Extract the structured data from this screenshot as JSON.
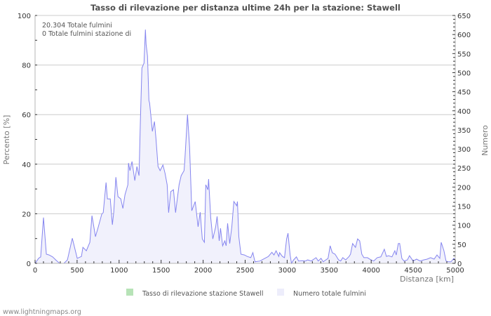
{
  "title": "Tasso di rilevazione per distanza ultime 24h per la stazione: Stawell",
  "annotations": {
    "total_strikes": "20.304 Totale fulmini",
    "station_strikes": "0 Totale fulmini stazione di"
  },
  "axes": {
    "y_left_label": "Percento   [%]",
    "y_right_label": "Numero",
    "x_label": "Distanza   [km]"
  },
  "legend": {
    "items": [
      {
        "label": "Tasso di rilevazione stazione Stawell",
        "color": "#b7e3b7"
      },
      {
        "label": "Numero totale fulmini",
        "color": "#ededfb"
      }
    ]
  },
  "footer": "www.lightningmaps.org",
  "colors": {
    "line": "#8585ef",
    "fill": "#f1f1fc",
    "grid": "#cccccc",
    "axis": "#b5b5b5",
    "tick": "#333333"
  },
  "chart_data": {
    "type": "area",
    "title": "Tasso di rilevazione per distanza ultime 24h per la stazione: Stawell",
    "xlabel": "Distanza [km]",
    "ylabel": "Percento [%]",
    "ylabel_right": "Numero",
    "xlim": [
      0,
      5000
    ],
    "ylim": [
      0,
      100
    ],
    "ylim_right": [
      0,
      650
    ],
    "x_ticks": [
      0,
      500,
      1000,
      1500,
      2000,
      2500,
      3000,
      3500,
      4000,
      4500,
      5000
    ],
    "y_ticks": [
      0,
      20,
      40,
      60,
      80,
      100
    ],
    "y_ticks_right": [
      0,
      50,
      100,
      150,
      200,
      250,
      300,
      350,
      400,
      450,
      500,
      550,
      600,
      650
    ],
    "grid": true,
    "legend_position": "bottom",
    "series": [
      {
        "name": "Numero totale fulmini",
        "axis": "right",
        "x": [
          0,
          42,
          67,
          100,
          134,
          167,
          209,
          251,
          293,
          343,
          385,
          443,
          502,
          552,
          569,
          610,
          652,
          677,
          719,
          753,
          794,
          811,
          845,
          861,
          895,
          920,
          936,
          962,
          987,
          1020,
          1045,
          1070,
          1104,
          1112,
          1129,
          1154,
          1187,
          1212,
          1237,
          1254,
          1271,
          1296,
          1313,
          1321,
          1338,
          1355,
          1363,
          1380,
          1396,
          1421,
          1438,
          1463,
          1488,
          1522,
          1547,
          1572,
          1589,
          1614,
          1647,
          1672,
          1714,
          1739,
          1773,
          1781,
          1814,
          1823,
          1839,
          1865,
          1906,
          1940,
          1965,
          1990,
          2015,
          2032,
          2057,
          2065,
          2090,
          2115,
          2149,
          2166,
          2191,
          2207,
          2232,
          2258,
          2274,
          2291,
          2316,
          2341,
          2366,
          2400,
          2408,
          2425,
          2450,
          2492,
          2525,
          2567,
          2592,
          2617,
          2676,
          2734,
          2776,
          2818,
          2843,
          2868,
          2901,
          2910,
          2943,
          2968,
          2993,
          3010,
          3035,
          3052,
          3077,
          3110,
          3135,
          3177,
          3219,
          3244,
          3286,
          3344,
          3370,
          3403,
          3428,
          3487,
          3512,
          3537,
          3570,
          3612,
          3637,
          3662,
          3696,
          3737,
          3754,
          3779,
          3813,
          3838,
          3863,
          3888,
          3913,
          3955,
          3997,
          4030,
          4072,
          4114,
          4156,
          4181,
          4206,
          4247,
          4281,
          4298,
          4323,
          4339,
          4365,
          4390,
          4431,
          4456,
          4498,
          4540,
          4582,
          4624,
          4666,
          4707,
          4749,
          4783,
          4816,
          4833,
          4866,
          4891,
          4916,
          4950,
          4983,
          5000
        ],
        "values": [
          0,
          13,
          17,
          120,
          24,
          22,
          17,
          8,
          0,
          0,
          9,
          66,
          13,
          18,
          42,
          33,
          55,
          125,
          70,
          96,
          129,
          133,
          212,
          169,
          169,
          101,
          133,
          226,
          175,
          169,
          144,
          180,
          206,
          263,
          243,
          267,
          217,
          254,
          230,
          377,
          512,
          525,
          613,
          574,
          543,
          427,
          420,
          383,
          346,
          372,
          328,
          254,
          243,
          258,
          236,
          206,
          133,
          188,
          193,
          133,
          206,
          230,
          243,
          267,
          390,
          359,
          304,
          138,
          162,
          96,
          134,
          64,
          55,
          206,
          193,
          221,
          120,
          64,
          96,
          123,
          59,
          92,
          46,
          59,
          46,
          105,
          52,
          96,
          162,
          151,
          162,
          70,
          24,
          22,
          18,
          15,
          28,
          4,
          6,
          13,
          18,
          29,
          22,
          33,
          18,
          28,
          18,
          15,
          64,
          79,
          22,
          0,
          9,
          17,
          6,
          7,
          6,
          9,
          6,
          15,
          6,
          13,
          4,
          13,
          46,
          28,
          24,
          9,
          6,
          15,
          9,
          18,
          24,
          52,
          42,
          64,
          59,
          24,
          15,
          15,
          9,
          6,
          15,
          17,
          37,
          18,
          20,
          17,
          33,
          22,
          52,
          52,
          13,
          6,
          9,
          20,
          6,
          11,
          6,
          9,
          11,
          15,
          11,
          22,
          13,
          55,
          33,
          6,
          4,
          4,
          13,
          9
        ]
      },
      {
        "name": "Tasso di rilevazione stazione Stawell",
        "axis": "left",
        "x": [],
        "values": []
      }
    ]
  }
}
